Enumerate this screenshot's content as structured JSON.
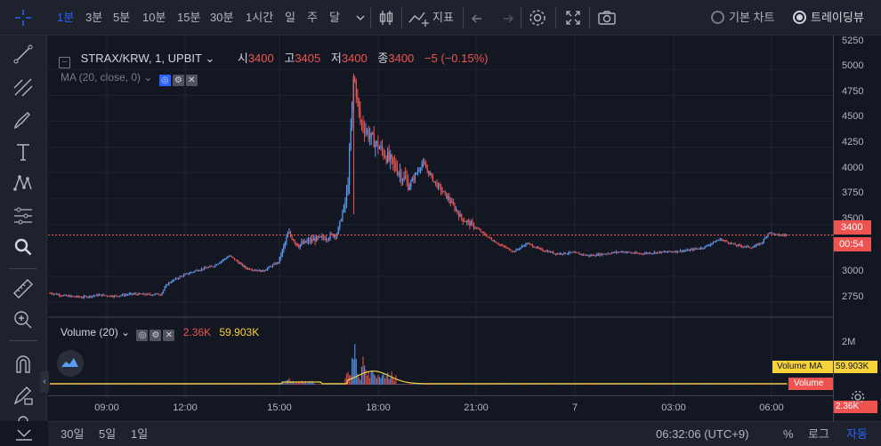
{
  "toolbar": {
    "intervals": [
      "1분",
      "3분",
      "5분",
      "10분",
      "15분",
      "30분",
      "1시간",
      "일",
      "주",
      "달"
    ],
    "active_interval": "1분",
    "indicators_label": "지표",
    "chart_type_basic": "기본 차트",
    "chart_type_tv": "트레이딩뷰"
  },
  "legend": {
    "symbol": "STRAX/KRW, 1, UPBIT",
    "open_label": "시",
    "open": "3400",
    "high_label": "고",
    "high": "3405",
    "low_label": "저",
    "low": "3400",
    "close_label": "종",
    "close": "3400",
    "change": "−5 (−0.15%)",
    "ma": "MA (20, close, 0)"
  },
  "volume_legend": {
    "title": "Volume (20)",
    "value": "2.36K",
    "ma_value": "59.903K"
  },
  "price_axis": {
    "ticks": [
      "5250",
      "5000",
      "4750",
      "4500",
      "4250",
      "4000",
      "3750",
      "3500",
      "3000",
      "2750"
    ],
    "current_price": "3400",
    "countdown": "00:54"
  },
  "volume_axis": {
    "ticks": [
      "2M"
    ],
    "volume_ma_label": "Volume MA",
    "volume_ma_value": "59.903K",
    "volume_label": "Volume",
    "volume_value": "2.36K"
  },
  "time_axis": {
    "ticks": [
      "09:00",
      "12:00",
      "15:00",
      "18:00",
      "21:00",
      "7",
      "03:00",
      "06:00"
    ]
  },
  "bottombar": {
    "ranges": [
      "30일",
      "5일",
      "1일"
    ],
    "clock": "06:32:06 (UTC+9)",
    "percent": "%",
    "log": "로그",
    "auto": "자동"
  },
  "colors": {
    "bg": "#131722",
    "panel": "#1e222d",
    "accent": "#2962ff",
    "down": "#ef5350",
    "up": "#5b9cf6",
    "volume_ma": "#f7d23b"
  },
  "chart_data": {
    "type": "candlestick",
    "symbol": "STRAX/KRW",
    "interval": "1",
    "price_series": [
      {
        "t": 0.0,
        "p": 2840
      },
      {
        "t": 0.5,
        "p": 2810
      },
      {
        "t": 1.0,
        "p": 2800
      },
      {
        "t": 1.5,
        "p": 2820
      },
      {
        "t": 2.0,
        "p": 2810
      },
      {
        "t": 2.5,
        "p": 2830
      },
      {
        "t": 3.0,
        "p": 2825
      },
      {
        "t": 3.4,
        "p": 2830
      },
      {
        "t": 3.6,
        "p": 2930
      },
      {
        "t": 4.0,
        "p": 3000
      },
      {
        "t": 4.5,
        "p": 3060
      },
      {
        "t": 5.0,
        "p": 3100
      },
      {
        "t": 5.5,
        "p": 3200
      },
      {
        "t": 6.0,
        "p": 3080
      },
      {
        "t": 6.5,
        "p": 3050
      },
      {
        "t": 7.0,
        "p": 3140
      },
      {
        "t": 7.3,
        "p": 3420
      },
      {
        "t": 7.6,
        "p": 3300
      },
      {
        "t": 8.0,
        "p": 3350
      },
      {
        "t": 8.5,
        "p": 3380
      },
      {
        "t": 8.8,
        "p": 3420
      },
      {
        "t": 9.1,
        "p": 3800
      },
      {
        "t": 9.3,
        "p": 4950
      },
      {
        "t": 9.5,
        "p": 4500
      },
      {
        "t": 9.8,
        "p": 4350
      },
      {
        "t": 10.2,
        "p": 4200
      },
      {
        "t": 10.6,
        "p": 4050
      },
      {
        "t": 11.0,
        "p": 3880
      },
      {
        "t": 11.4,
        "p": 4100
      },
      {
        "t": 11.8,
        "p": 3900
      },
      {
        "t": 12.2,
        "p": 3750
      },
      {
        "t": 12.6,
        "p": 3560
      },
      {
        "t": 13.0,
        "p": 3480
      },
      {
        "t": 13.4,
        "p": 3380
      },
      {
        "t": 13.8,
        "p": 3300
      },
      {
        "t": 14.2,
        "p": 3240
      },
      {
        "t": 14.6,
        "p": 3320
      },
      {
        "t": 15.0,
        "p": 3260
      },
      {
        "t": 15.5,
        "p": 3220
      },
      {
        "t": 16.0,
        "p": 3230
      },
      {
        "t": 16.5,
        "p": 3200
      },
      {
        "t": 17.0,
        "p": 3220
      },
      {
        "t": 17.5,
        "p": 3240
      },
      {
        "t": 18.0,
        "p": 3220
      },
      {
        "t": 18.5,
        "p": 3230
      },
      {
        "t": 19.0,
        "p": 3240
      },
      {
        "t": 19.5,
        "p": 3250
      },
      {
        "t": 20.0,
        "p": 3280
      },
      {
        "t": 20.5,
        "p": 3360
      },
      {
        "t": 21.0,
        "p": 3300
      },
      {
        "t": 21.5,
        "p": 3280
      },
      {
        "t": 21.8,
        "p": 3330
      },
      {
        "t": 22.0,
        "p": 3430
      },
      {
        "t": 22.2,
        "p": 3400
      }
    ],
    "volume_peaks": [
      {
        "t": 9.3,
        "v": 2200000
      },
      {
        "t": 9.6,
        "v": 1350000
      },
      {
        "t": 9.9,
        "v": 900000
      },
      {
        "t": 7.3,
        "v": 420000
      },
      {
        "t": 10.5,
        "v": 250000
      },
      {
        "t": 13.8,
        "v": 150000
      }
    ],
    "current_price": 3400,
    "ylim": [
      2600,
      5300
    ]
  }
}
